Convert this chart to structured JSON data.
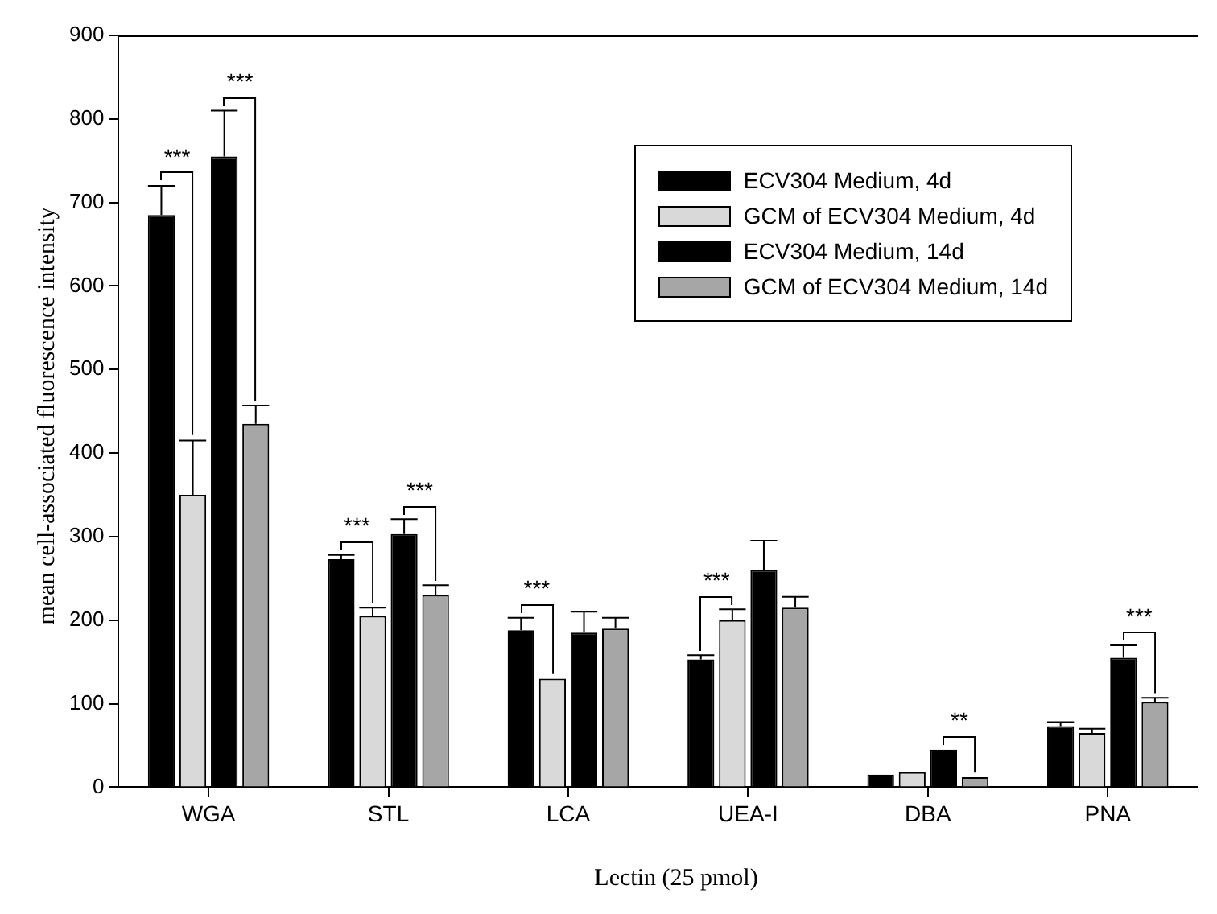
{
  "chart_data": {
    "type": "bar",
    "xlabel": "Lectin (25 pmol)",
    "ylabel": "mean cell-associated fluorescence intensity",
    "categories": [
      "WGA",
      "STL",
      "LCA",
      "UEA-I",
      "DBA",
      "PNA"
    ],
    "series": [
      {
        "name": "ECV304 Medium, 4d",
        "color": "#000000",
        "values": [
          685,
          273,
          188,
          153,
          15,
          73
        ],
        "errors": [
          35,
          5,
          15,
          5,
          null,
          5
        ]
      },
      {
        "name": "GCM of ECV304 Medium, 4d",
        "color": "#d9d9d9",
        "values": [
          350,
          205,
          130,
          200,
          18,
          65
        ],
        "errors": [
          65,
          10,
          null,
          13,
          null,
          5
        ]
      },
      {
        "name": "ECV304 Medium, 14d",
        "color": "#000000",
        "values": [
          755,
          303,
          185,
          260,
          45,
          155
        ],
        "errors": [
          55,
          18,
          25,
          35,
          null,
          15
        ]
      },
      {
        "name": "GCM of ECV304 Medium, 14d",
        "color": "#a6a6a6",
        "values": [
          435,
          230,
          190,
          215,
          12,
          102
        ],
        "errors": [
          22,
          12,
          13,
          13,
          null,
          5
        ]
      }
    ],
    "ylim": [
      0,
      900
    ],
    "yticks": [
      0,
      100,
      200,
      300,
      400,
      500,
      600,
      700,
      800,
      900
    ],
    "grid": false,
    "legend": "top right",
    "annotations": [
      {
        "text": "***",
        "x": "WGA",
        "y": 685
      },
      {
        "text": "***",
        "x": "WGA",
        "y": 755
      },
      {
        "text": "***",
        "x": "STL",
        "y": 273
      },
      {
        "text": "***",
        "x": "STL",
        "y": 303
      },
      {
        "text": "***",
        "x": "LCA",
        "y": 188
      },
      {
        "text": "***",
        "x": "UEA-I",
        "y": 200
      },
      {
        "text": "**",
        "x": "DBA",
        "y": 45
      },
      {
        "text": "***",
        "x": "PNA",
        "y": 155
      }
    ]
  }
}
